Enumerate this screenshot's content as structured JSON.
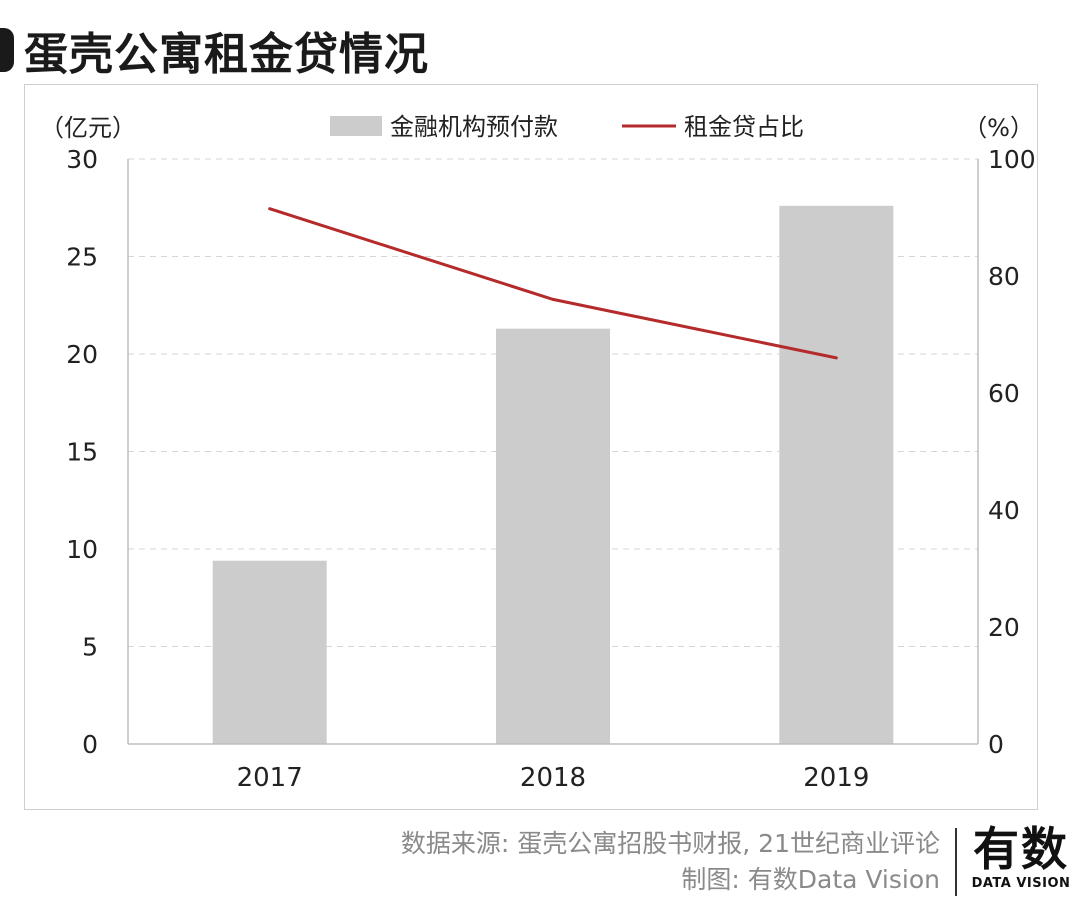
{
  "title": "蛋壳公寓租金贷情况",
  "chart_data": {
    "type": "bar",
    "categories": [
      "2017",
      "2018",
      "2019"
    ],
    "series": [
      {
        "name": "金融机构预付款",
        "kind": "bar",
        "axis": "left",
        "values": [
          9.4,
          21.3,
          27.6
        ],
        "color": "#cccccc"
      },
      {
        "name": "租金贷占比",
        "kind": "line",
        "axis": "right",
        "values": [
          91.5,
          76.0,
          66.0
        ],
        "color": "#b52a2a"
      }
    ],
    "ylabel_left": "（亿元）",
    "ylabel_right": "（%）",
    "ylim_left": [
      0,
      30
    ],
    "ylim_right": [
      0,
      100
    ],
    "yticks_left": [
      "0",
      "5",
      "10",
      "15",
      "20",
      "25",
      "30"
    ],
    "yticks_right": [
      "0",
      "20",
      "40",
      "60",
      "80",
      "100"
    ],
    "grid": true,
    "legend_position": "top-center"
  },
  "footer": {
    "source": "数据来源: 蛋壳公寓招股书财报, 21世纪商业评论",
    "credit": "制图: 有数Data Vision"
  },
  "brand": {
    "cn": "有数",
    "en": "DATA VISION"
  }
}
